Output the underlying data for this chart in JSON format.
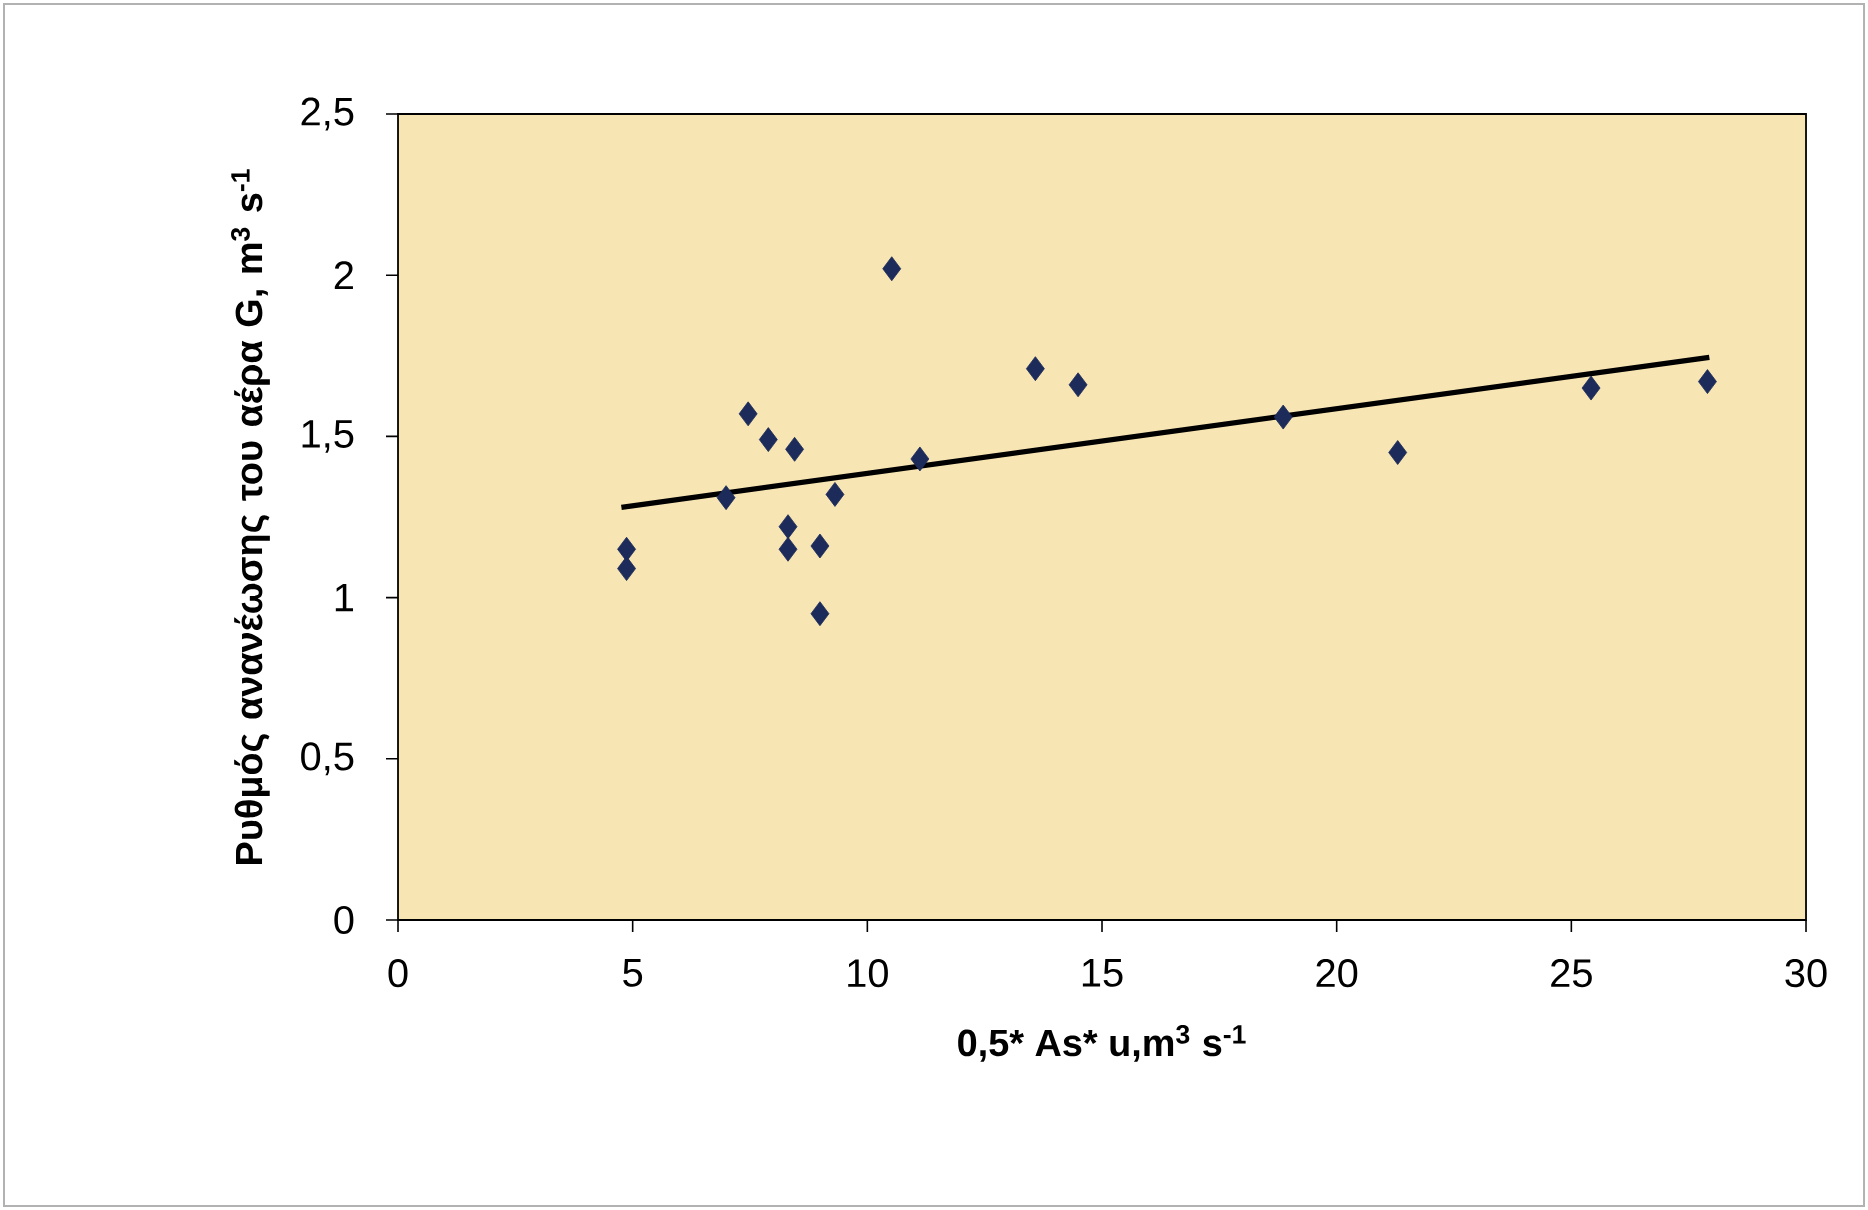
{
  "chart_data": {
    "type": "scatter",
    "xlabel": "**0,5* As* u,m$^{3}$ s$^{-1}$**",
    "ylabel": "**Ρυθμός ανανέωσης του αέρα G, m$^{3}$ s$^{-1}$**",
    "xlim": [
      0,
      30
    ],
    "ylim": [
      0,
      2.5
    ],
    "xticks": [
      0,
      5,
      10,
      15,
      20,
      25,
      30
    ],
    "yticks": [
      0,
      {
        "value": 0.5,
        "label": "0,5"
      },
      1,
      {
        "value": 1.5,
        "label": "1,5"
      },
      2,
      {
        "value": 2.5,
        "label": "2,5"
      }
    ],
    "grid": false,
    "series": [
      {
        "color": "#1c2b5a",
        "marker": "diamond",
        "x": [
          10.52,
          7.46,
          7.89,
          8.45,
          11.12,
          6.99,
          9.31,
          8.31,
          8.31,
          8.99,
          8.99,
          4.87,
          4.87,
          13.58,
          14.49,
          18.86,
          21.3,
          25.42,
          27.9
        ],
        "values": [
          2.02,
          1.57,
          1.49,
          1.46,
          1.43,
          1.31,
          1.32,
          1.22,
          1.15,
          1.16,
          0.95,
          1.15,
          1.09,
          1.71,
          1.66,
          1.56,
          1.45,
          1.65,
          1.67
        ]
      },
      {
        "type": "line",
        "marker": "none",
        "color": "#000000",
        "x": [
          4.76,
          27.94
        ],
        "values": [
          1.28,
          1.745
        ]
      }
    ]
  }
}
